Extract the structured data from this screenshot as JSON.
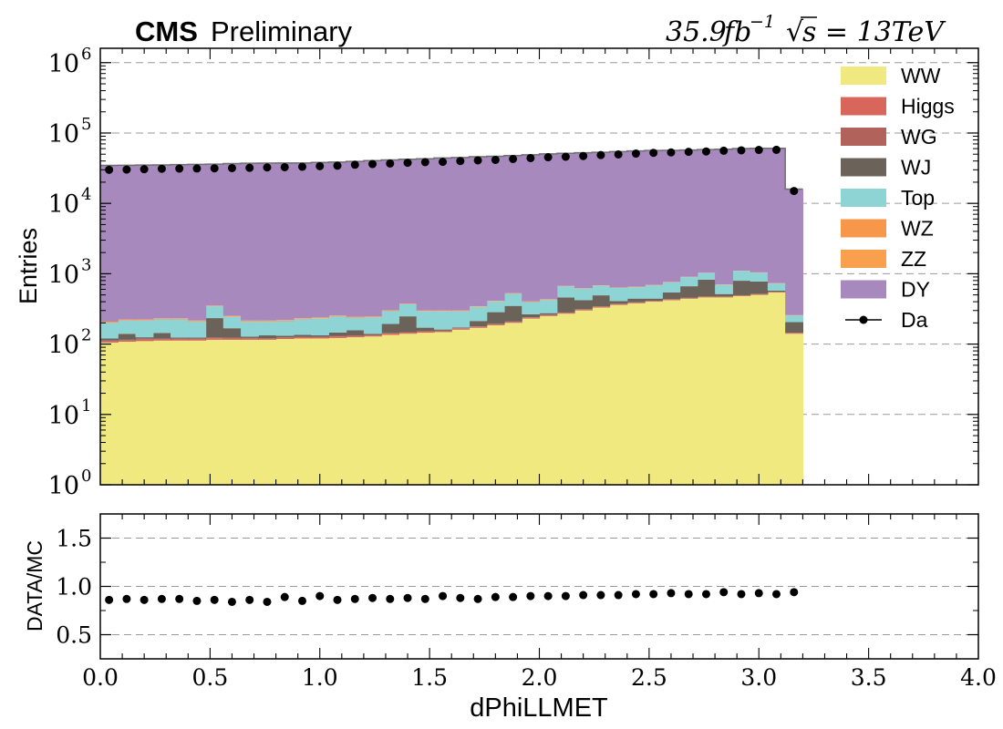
{
  "header": {
    "cms": "CMS",
    "preliminary": "Preliminary",
    "lumi": "35.9",
    "lumi_unit": "fb",
    "lumi_exp": "−1",
    "energy": "s = 13TeV",
    "sqrt_symbol": "√"
  },
  "chart_data": [
    {
      "type": "bar",
      "subtype": "stacked-histogram",
      "ylabel": "Entries",
      "yscale": "log",
      "ylim": [
        1,
        1600000
      ],
      "xlim": [
        0,
        4
      ],
      "grid": "y-dashed",
      "legend_position": "top-right",
      "yticks": [
        {
          "value": 1,
          "base": "10",
          "exp": "0"
        },
        {
          "value": 10,
          "base": "10",
          "exp": "1"
        },
        {
          "value": 100,
          "base": "10",
          "exp": "2"
        },
        {
          "value": 1000,
          "base": "10",
          "exp": "3"
        },
        {
          "value": 10000,
          "base": "10",
          "exp": "4"
        },
        {
          "value": 100000,
          "base": "10",
          "exp": "5"
        },
        {
          "value": 1000000,
          "base": "10",
          "exp": "6"
        }
      ],
      "bin_width": 0.08,
      "bin_centers": [
        0.04,
        0.12,
        0.2,
        0.28,
        0.36,
        0.44,
        0.52,
        0.6,
        0.68,
        0.76,
        0.84,
        0.92,
        1.0,
        1.08,
        1.16,
        1.24,
        1.32,
        1.4,
        1.48,
        1.56,
        1.64,
        1.72,
        1.8,
        1.88,
        1.96,
        2.04,
        2.12,
        2.2,
        2.28,
        2.36,
        2.44,
        2.52,
        2.6,
        2.68,
        2.76,
        2.84,
        2.92,
        3.0,
        3.08,
        3.16
      ],
      "series": [
        {
          "name": "WW",
          "color": "#f0e97f",
          "values": [
            105,
            108,
            110,
            112,
            112,
            112,
            115,
            115,
            115,
            115,
            118,
            120,
            120,
            122,
            125,
            128,
            135,
            140,
            145,
            148,
            160,
            170,
            185,
            200,
            230,
            250,
            270,
            300,
            330,
            360,
            380,
            400,
            420,
            440,
            460,
            460,
            480,
            500,
            540,
            140
          ]
        },
        {
          "name": "Higgs",
          "color": "#d9665b",
          "values": [
            4,
            4,
            6,
            4,
            4,
            4,
            6,
            5,
            4,
            3,
            4,
            4,
            4,
            6,
            4,
            4,
            6,
            5,
            5,
            4,
            5,
            5,
            6,
            6,
            7,
            8,
            8,
            9,
            10,
            10,
            10,
            10,
            11,
            11,
            11,
            11,
            12,
            12,
            12,
            4
          ]
        },
        {
          "name": "WG",
          "color": "#b0625b",
          "values": [
            3,
            3,
            3,
            3,
            3,
            3,
            3,
            3,
            3,
            3,
            3,
            3,
            3,
            3,
            3,
            3,
            3,
            3,
            3,
            3,
            3,
            3,
            3,
            3,
            3,
            3,
            3,
            3,
            3,
            3,
            3,
            3,
            3,
            3,
            3,
            3,
            3,
            3,
            3,
            1
          ]
        },
        {
          "name": "WJ",
          "color": "#6b6359",
          "values": [
            8,
            25,
            6,
            25,
            5,
            5,
            110,
            45,
            6,
            12,
            6,
            8,
            6,
            15,
            25,
            5,
            50,
            100,
            18,
            6,
            4,
            35,
            90,
            140,
            25,
            14,
            180,
            110,
            150,
            35,
            50,
            30,
            110,
            210,
            350,
            40,
            300,
            260,
            20,
            60
          ]
        },
        {
          "name": "Top",
          "color": "#8fd4d5",
          "values": [
            80,
            75,
            90,
            80,
            100,
            85,
            110,
            75,
            80,
            75,
            80,
            90,
            100,
            100,
            80,
            100,
            100,
            120,
            120,
            130,
            120,
            125,
            120,
            170,
            130,
            150,
            200,
            190,
            180,
            220,
            200,
            240,
            210,
            230,
            200,
            180,
            300,
            260,
            150,
            50
          ]
        },
        {
          "name": "WZ",
          "color": "#f7974a",
          "values": [
            5,
            5,
            5,
            5,
            5,
            5,
            5,
            5,
            5,
            5,
            5,
            5,
            5,
            5,
            5,
            5,
            5,
            5,
            5,
            5,
            5,
            5,
            5,
            6,
            6,
            6,
            6,
            6,
            6,
            6,
            6,
            6,
            6,
            6,
            6,
            6,
            6,
            6,
            6,
            2
          ]
        },
        {
          "name": "ZZ",
          "color": "#f9a04e",
          "values": [
            3,
            3,
            3,
            3,
            3,
            3,
            3,
            3,
            3,
            3,
            3,
            3,
            3,
            3,
            3,
            3,
            3,
            3,
            3,
            3,
            3,
            3,
            3,
            4,
            4,
            4,
            4,
            4,
            4,
            4,
            4,
            4,
            4,
            4,
            4,
            4,
            4,
            4,
            4,
            1
          ]
        },
        {
          "name": "DY",
          "color": "#a789be",
          "values": [
            34500,
            34600,
            34800,
            35000,
            35300,
            35600,
            35800,
            36500,
            37000,
            37100,
            37200,
            37300,
            37900,
            38300,
            39200,
            40300,
            41100,
            42000,
            42800,
            43900,
            44500,
            45600,
            46300,
            47200,
            48600,
            50000,
            50800,
            51700,
            52600,
            53800,
            55000,
            55800,
            56000,
            56500,
            57200,
            58200,
            59000,
            59500,
            59900,
            15700
          ]
        }
      ],
      "data": {
        "name": "Da",
        "values": [
          30000,
          30200,
          30600,
          31000,
          31200,
          31300,
          31500,
          31700,
          32000,
          32400,
          32700,
          33200,
          33800,
          34300,
          35400,
          36200,
          36900,
          37800,
          38600,
          38900,
          40000,
          40900,
          41500,
          42700,
          44000,
          45300,
          46000,
          47100,
          48600,
          49600,
          51000,
          52300,
          53000,
          54000,
          54700,
          56000,
          56700,
          57500,
          57700,
          15000
        ]
      }
    },
    {
      "type": "scatter",
      "ylabel": "DATA/MC",
      "xlabel": "dPhiLLMET",
      "ylim": [
        0.25,
        1.75
      ],
      "xlim": [
        0,
        4
      ],
      "grid": "y-dashed",
      "yticks": [
        "0.5",
        "1.0",
        "1.5"
      ],
      "xticks": [
        "0.0",
        "0.5",
        "1.0",
        "1.5",
        "2.0",
        "2.5",
        "3.0",
        "3.5",
        "4.0"
      ],
      "x": [
        0.04,
        0.12,
        0.2,
        0.28,
        0.36,
        0.44,
        0.52,
        0.6,
        0.68,
        0.76,
        0.84,
        0.92,
        1.0,
        1.08,
        1.16,
        1.24,
        1.32,
        1.4,
        1.48,
        1.56,
        1.64,
        1.72,
        1.8,
        1.88,
        1.96,
        2.04,
        2.12,
        2.2,
        2.28,
        2.36,
        2.44,
        2.52,
        2.6,
        2.68,
        2.76,
        2.84,
        2.92,
        3.0,
        3.08,
        3.16
      ],
      "values": [
        0.86,
        0.87,
        0.86,
        0.87,
        0.87,
        0.85,
        0.86,
        0.84,
        0.86,
        0.84,
        0.89,
        0.85,
        0.9,
        0.86,
        0.87,
        0.88,
        0.87,
        0.88,
        0.87,
        0.9,
        0.88,
        0.87,
        0.89,
        0.89,
        0.9,
        0.9,
        0.9,
        0.91,
        0.91,
        0.91,
        0.92,
        0.92,
        0.93,
        0.92,
        0.92,
        0.94,
        0.92,
        0.93,
        0.92,
        0.94
      ]
    }
  ]
}
